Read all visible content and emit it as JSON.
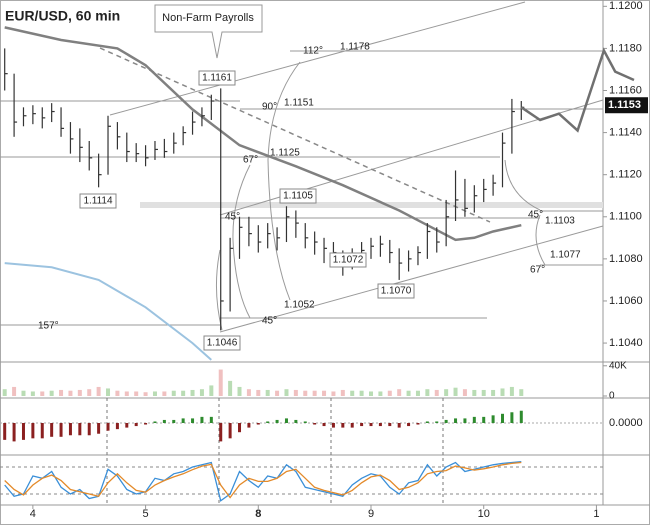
{
  "chart_data": {
    "type": "ohlc",
    "title": "EUR/USD, 60 min",
    "callout": "Non-Farm Payrolls",
    "high": [
      1.118,
      1.1168,
      1.1152,
      1.1153,
      1.1152,
      1.1154,
      1.1152,
      1.1145,
      1.1142,
      1.1136,
      1.113,
      1.1148,
      1.1145,
      1.114,
      1.1135,
      1.1134,
      1.1136,
      1.1137,
      1.114,
      1.1143,
      1.115,
      1.1152,
      1.1158,
      1.1161,
      1.109,
      1.11,
      1.11,
      1.1096,
      1.1097,
      1.1095,
      1.1105,
      1.1103,
      1.1097,
      1.1093,
      1.109,
      1.1088,
      1.1084,
      1.1085,
      1.1088,
      1.109,
      1.1091,
      1.1089,
      1.1085,
      1.1084,
      1.1086,
      1.1097,
      1.1095,
      1.1108,
      1.1122,
      1.1118,
      1.1115,
      1.1118,
      1.112,
      1.114,
      1.1156,
      1.1155
    ],
    "low": [
      1.116,
      1.1138,
      1.1143,
      1.1144,
      1.1142,
      1.1145,
      1.1138,
      1.113,
      1.1126,
      1.1122,
      1.1114,
      1.112,
      1.1132,
      1.1126,
      1.1126,
      1.1124,
      1.1127,
      1.1128,
      1.113,
      1.1134,
      1.1139,
      1.1143,
      1.1146,
      1.1046,
      1.1055,
      1.108,
      1.1086,
      1.1083,
      1.1085,
      1.1084,
      1.1088,
      1.109,
      1.1085,
      1.1082,
      1.1078,
      1.1076,
      1.1072,
      1.1075,
      1.1078,
      1.108,
      1.1081,
      1.1078,
      1.107,
      1.1074,
      1.1077,
      1.108,
      1.1083,
      1.1086,
      1.1098,
      1.11,
      1.1102,
      1.1107,
      1.111,
      1.1114,
      1.113,
      1.1146
    ],
    "close": [
      1.1168,
      1.1145,
      1.1148,
      1.1149,
      1.1147,
      1.115,
      1.1142,
      1.1137,
      1.1133,
      1.1128,
      1.112,
      1.1143,
      1.1138,
      1.1131,
      1.113,
      1.1128,
      1.1132,
      1.1131,
      1.1135,
      1.114,
      1.1145,
      1.1148,
      1.1155,
      1.106,
      1.1085,
      1.1095,
      1.1092,
      1.1088,
      1.1092,
      1.109,
      1.11,
      1.1097,
      1.109,
      1.1088,
      1.1085,
      1.1083,
      1.1078,
      1.108,
      1.1084,
      1.1086,
      1.1087,
      1.1083,
      1.1078,
      1.108,
      1.1083,
      1.1093,
      1.1088,
      1.11,
      1.1108,
      1.1104,
      1.111,
      1.1113,
      1.1116,
      1.1135,
      1.115,
      1.1152
    ],
    "ma": {
      "color": "#808080",
      "x": [
        0,
        6,
        12,
        15,
        20,
        25,
        31,
        36,
        42,
        45,
        48,
        50,
        52,
        55
      ],
      "values": [
        1.119,
        1.1184,
        1.118,
        1.1172,
        1.1151,
        1.1134,
        1.1124,
        1.1115,
        1.1103,
        1.1096,
        1.1089,
        1.109,
        1.1093,
        1.1096
      ]
    },
    "ma2": {
      "color": "#9cc3e0",
      "x": [
        0,
        5,
        10,
        15,
        20,
        22
      ],
      "values": [
        1.1078,
        1.1076,
        1.107,
        1.1057,
        1.104,
        1.1032
      ]
    },
    "forecast": {
      "color": "#707070",
      "x": [
        55,
        57,
        59,
        61,
        63.8,
        65,
        67
      ],
      "values": [
        1.1152,
        1.1146,
        1.1149,
        1.1141,
        1.1179,
        1.1169,
        1.1165
      ]
    },
    "last_price": {
      "value": 1.1153,
      "label": "1.1153"
    },
    "annotations": [
      "1.1161",
      "1.1114",
      "1.1105",
      "1.1072",
      "1.1070",
      "1.1046",
      "112°",
      "1.1178",
      "90°",
      "1.1151",
      "67°",
      "1.1125",
      "45°",
      "1.1052",
      "45°",
      "157°",
      "45°",
      "1.1103",
      "67°",
      "1.1077"
    ],
    "ylim": [
      1.1031,
      1.1203
    ],
    "yticks": [
      {
        "value": 1.12,
        "label": "1.1200"
      },
      {
        "value": 1.118,
        "label": "1.1180"
      },
      {
        "value": 1.116,
        "label": "1.1160"
      },
      {
        "value": 1.114,
        "label": "1.1140"
      },
      {
        "value": 1.112,
        "label": "1.1120"
      },
      {
        "value": 1.11,
        "label": "1.1100"
      },
      {
        "value": 1.108,
        "label": "1.1080"
      },
      {
        "value": 1.106,
        "label": "1.1060"
      },
      {
        "value": 1.104,
        "label": "1.1040"
      }
    ],
    "xlim": [
      -0.5,
      63.7
    ],
    "xticks": [
      {
        "value": 3,
        "label": "4"
      },
      {
        "value": 15,
        "label": "5"
      },
      {
        "value": 27,
        "label": "8"
      },
      {
        "value": 39,
        "label": "9"
      },
      {
        "value": 51,
        "label": "10"
      },
      {
        "value": 63,
        "label": "1"
      }
    ],
    "volume": {
      "values": [
        9000,
        12000,
        7000,
        6000,
        6000,
        7000,
        8000,
        7000,
        8000,
        9000,
        12000,
        10000,
        7000,
        6000,
        6000,
        5000,
        6000,
        6000,
        7000,
        7000,
        8000,
        9000,
        14000,
        35000,
        20000,
        12000,
        9000,
        8000,
        8000,
        7000,
        9000,
        8000,
        7000,
        7000,
        7000,
        6000,
        8000,
        7000,
        7000,
        6000,
        6000,
        7000,
        9000,
        7000,
        7000,
        9000,
        8000,
        9000,
        11000,
        9000,
        8000,
        8000,
        8000,
        10000,
        12000,
        9000
      ],
      "ylim": [
        0,
        45000
      ],
      "yticks": [
        {
          "value": 40000,
          "label": "40K"
        },
        0
      ]
    },
    "macd": {
      "values": [
        -0.0011,
        -0.0012,
        -0.0011,
        -0.001,
        -0.001,
        -0.0009,
        -0.0009,
        -0.0008,
        -0.0008,
        -0.0008,
        -0.0007,
        -0.0005,
        -0.0004,
        -0.0003,
        -0.0002,
        -0.0001,
        0.0001,
        0.0002,
        0.0002,
        0.0003,
        0.0003,
        0.0004,
        0.0004,
        -0.0012,
        -0.001,
        -0.0006,
        -0.0003,
        -0.0001,
        0.0001,
        0.0002,
        0.0003,
        0.0002,
        0.0001,
        -0.0001,
        -0.0002,
        -0.0003,
        -0.0003,
        -0.0003,
        -0.0002,
        -0.0002,
        -0.0002,
        -0.0002,
        -0.0003,
        -0.0002,
        -0.0001,
        0.0001,
        0.0001,
        0.0002,
        0.0003,
        0.0003,
        0.0004,
        0.0004,
        0.0005,
        0.0006,
        0.0007,
        0.0008
      ],
      "ylim": [
        -0.0015,
        0.0015
      ],
      "yticks": [
        {
          "value": 0,
          "label": "0.0000"
        }
      ]
    },
    "stochastic": {
      "ylim": [
        0,
        100
      ],
      "levels": [
        20,
        80
      ],
      "series": [
        {
          "color": "#3a8fd8",
          "values": [
            40,
            15,
            20,
            60,
            55,
            70,
            35,
            20,
            30,
            10,
            15,
            75,
            60,
            30,
            20,
            25,
            55,
            50,
            65,
            70,
            80,
            85,
            90,
            5,
            20,
            70,
            50,
            35,
            60,
            55,
            85,
            70,
            35,
            30,
            25,
            20,
            15,
            40,
            55,
            65,
            60,
            35,
            20,
            45,
            50,
            85,
            60,
            80,
            90,
            70,
            75,
            80,
            85,
            88,
            90,
            92
          ]
        },
        {
          "color": "#e38a2a",
          "values": [
            50,
            30,
            18,
            40,
            55,
            62,
            50,
            30,
            25,
            20,
            15,
            45,
            65,
            45,
            28,
            24,
            40,
            50,
            58,
            65,
            74,
            82,
            86,
            40,
            12,
            40,
            55,
            48,
            48,
            55,
            70,
            75,
            55,
            35,
            28,
            23,
            18,
            28,
            45,
            58,
            62,
            50,
            30,
            35,
            45,
            65,
            70,
            72,
            82,
            78,
            73,
            76,
            80,
            85,
            88,
            90
          ]
        }
      ]
    }
  }
}
